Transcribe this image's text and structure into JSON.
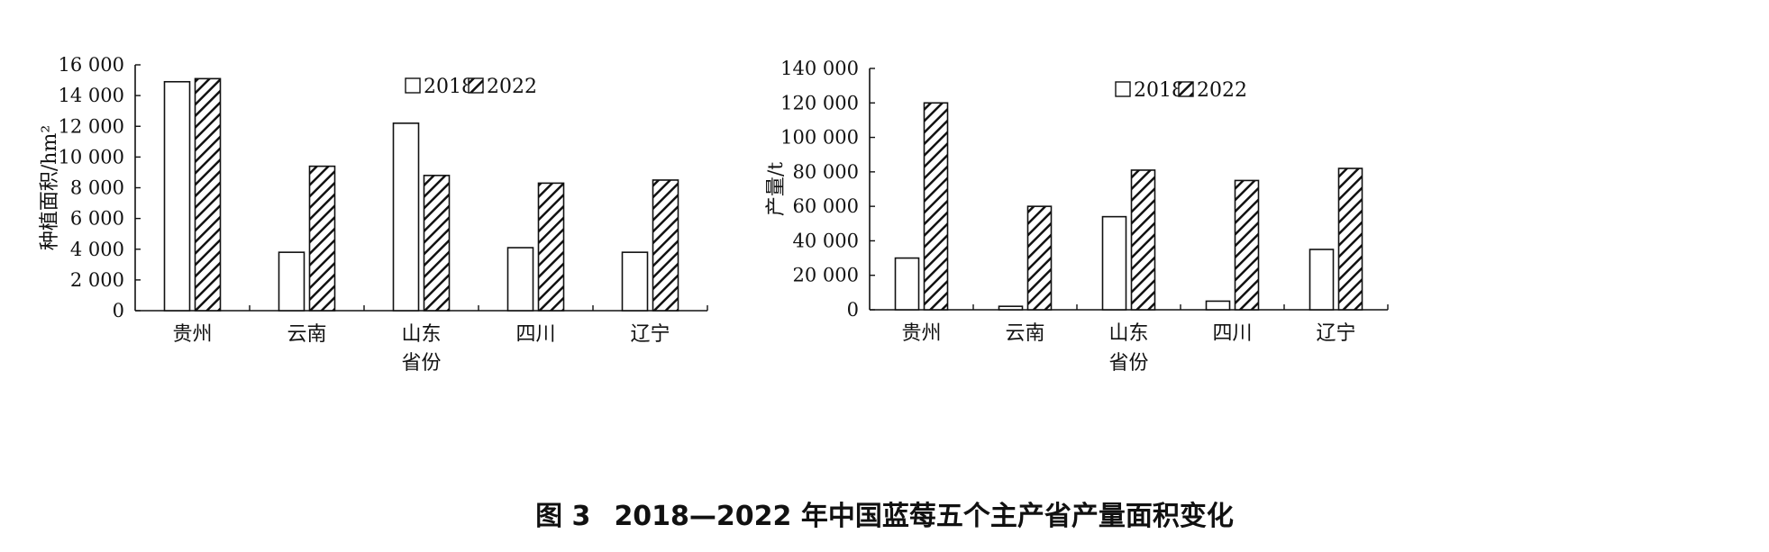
{
  "figure_caption": {
    "label": "图 3",
    "text": "2018—2022 年中国蓝莓五个主产省产量面积变化"
  },
  "chart_data": [
    {
      "type": "bar",
      "title": "",
      "xlabel": "省份",
      "ylabel": "种植面积/hm²",
      "ylim": [
        0,
        16000
      ],
      "yticks": [
        0,
        2000,
        4000,
        6000,
        8000,
        10000,
        12000,
        14000,
        16000
      ],
      "ytick_labels": [
        "0",
        "2 000",
        "4 000",
        "6 000",
        "8 000",
        "10 000",
        "12 000",
        "14 000",
        "16 000"
      ],
      "categories": [
        "贵州",
        "云南",
        "山东",
        "四川",
        "辽宁"
      ],
      "legend_position": "top-center",
      "grid": false,
      "series": [
        {
          "name": "2018",
          "pattern": "plain",
          "values": [
            14900,
            3800,
            12200,
            4100,
            3800
          ]
        },
        {
          "name": "2022",
          "pattern": "hatched",
          "values": [
            15100,
            9400,
            8800,
            8300,
            8500
          ]
        }
      ]
    },
    {
      "type": "bar",
      "title": "",
      "xlabel": "省份",
      "ylabel": "产量/t",
      "ylim": [
        0,
        140000
      ],
      "yticks": [
        0,
        20000,
        40000,
        60000,
        80000,
        100000,
        120000,
        140000
      ],
      "ytick_labels": [
        "0",
        "20 000",
        "40 000",
        "60 000",
        "80 000",
        "100 000",
        "120 000",
        "140 000"
      ],
      "categories": [
        "贵州",
        "云南",
        "山东",
        "四川",
        "辽宁"
      ],
      "legend_position": "top-center",
      "grid": false,
      "series": [
        {
          "name": "2018",
          "pattern": "plain",
          "values": [
            30000,
            2000,
            54000,
            5000,
            35000
          ]
        },
        {
          "name": "2022",
          "pattern": "hatched",
          "values": [
            120000,
            60000,
            81000,
            75000,
            82000
          ]
        }
      ]
    }
  ],
  "colors": {
    "axis": "#111111",
    "bar_fill": "#ffffff",
    "bar_stroke": "#111111",
    "hatch": "#111111"
  }
}
